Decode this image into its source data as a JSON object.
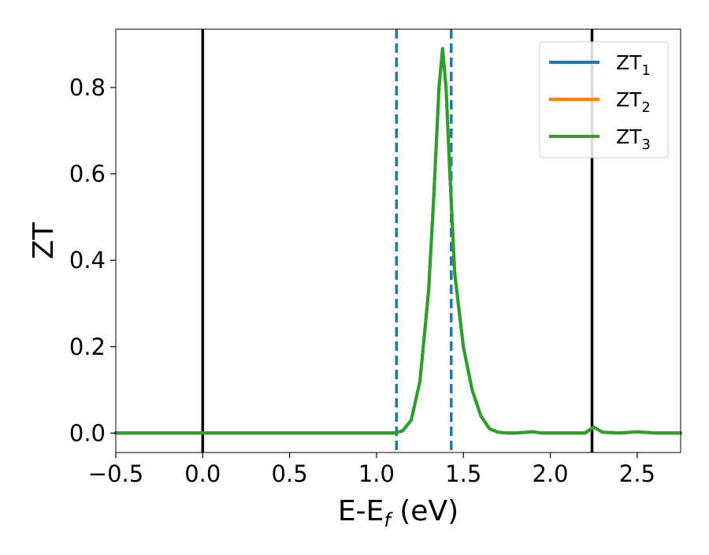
{
  "chart_data": {
    "type": "line",
    "xlabel": {
      "main": "E-E",
      "sub": "f",
      "suffix": " (eV)"
    },
    "ylabel": "ZT",
    "xlim": [
      -0.5,
      2.75
    ],
    "ylim": [
      -0.045,
      0.935
    ],
    "xticks": [
      -0.5,
      0.0,
      0.5,
      1.0,
      1.5,
      2.0,
      2.5
    ],
    "xtick_labels": [
      "−0.5",
      "0.0",
      "0.5",
      "1.0",
      "1.5",
      "2.0",
      "2.5"
    ],
    "yticks": [
      0.0,
      0.2,
      0.4,
      0.6,
      0.8
    ],
    "ytick_labels": [
      "0.0",
      "0.2",
      "0.4",
      "0.6",
      "0.8"
    ],
    "grid": false,
    "legend_position": "top-right",
    "vlines": [
      {
        "x": 0.0,
        "style": "solid",
        "color": "#000000"
      },
      {
        "x": 2.24,
        "style": "solid",
        "color": "#000000"
      },
      {
        "x": 1.115,
        "style": "dashed",
        "color": "#1f77b4"
      },
      {
        "x": 1.43,
        "style": "dashed",
        "color": "#1f77b4"
      }
    ],
    "series": [
      {
        "name": "ZT",
        "sub": "1",
        "color": "#1f77b4",
        "x": [
          -0.5,
          1.1,
          1.15,
          1.2,
          1.25,
          1.3,
          1.33,
          1.36,
          1.38,
          1.4,
          1.42,
          1.45,
          1.5,
          1.55,
          1.6,
          1.65,
          1.7,
          1.75,
          1.8,
          1.9,
          1.95,
          2.0,
          2.1,
          2.2,
          2.25,
          2.3,
          2.4,
          2.5,
          2.6,
          2.75
        ],
        "y": [
          0.0,
          0.0,
          0.005,
          0.03,
          0.12,
          0.33,
          0.55,
          0.8,
          0.89,
          0.8,
          0.62,
          0.37,
          0.2,
          0.1,
          0.04,
          0.01,
          0.002,
          0.0,
          0.0,
          0.003,
          0.0,
          0.0,
          0.0,
          0.0,
          0.014,
          0.002,
          0.0,
          0.003,
          0.0,
          0.0
        ]
      },
      {
        "name": "ZT",
        "sub": "2",
        "color": "#ff7f0e",
        "x": [
          -0.5,
          1.1,
          1.15,
          1.2,
          1.25,
          1.3,
          1.33,
          1.36,
          1.38,
          1.4,
          1.42,
          1.45,
          1.5,
          1.55,
          1.6,
          1.65,
          1.7,
          1.75,
          1.8,
          1.9,
          1.95,
          2.0,
          2.1,
          2.2,
          2.25,
          2.3,
          2.4,
          2.5,
          2.6,
          2.75
        ],
        "y": [
          0.0,
          0.0,
          0.005,
          0.03,
          0.12,
          0.33,
          0.55,
          0.8,
          0.89,
          0.8,
          0.62,
          0.37,
          0.2,
          0.1,
          0.04,
          0.01,
          0.002,
          0.0,
          0.0,
          0.003,
          0.0,
          0.0,
          0.0,
          0.0,
          0.014,
          0.002,
          0.0,
          0.003,
          0.0,
          0.0
        ]
      },
      {
        "name": "ZT",
        "sub": "3",
        "color": "#2ca02c",
        "x": [
          -0.5,
          1.1,
          1.15,
          1.2,
          1.25,
          1.3,
          1.33,
          1.36,
          1.38,
          1.4,
          1.42,
          1.45,
          1.5,
          1.55,
          1.6,
          1.65,
          1.7,
          1.75,
          1.8,
          1.9,
          1.95,
          2.0,
          2.1,
          2.2,
          2.25,
          2.3,
          2.4,
          2.5,
          2.6,
          2.75
        ],
        "y": [
          0.0,
          0.0,
          0.005,
          0.03,
          0.12,
          0.33,
          0.55,
          0.8,
          0.89,
          0.8,
          0.62,
          0.37,
          0.2,
          0.1,
          0.04,
          0.01,
          0.002,
          0.0,
          0.0,
          0.003,
          0.0,
          0.0,
          0.0,
          0.0,
          0.014,
          0.002,
          0.0,
          0.003,
          0.0,
          0.0
        ]
      }
    ]
  }
}
